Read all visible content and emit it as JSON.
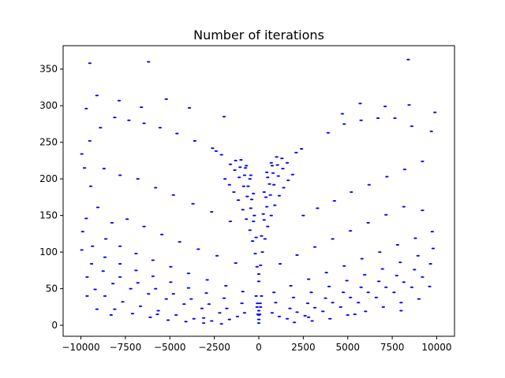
{
  "chart_data": {
    "type": "scatter",
    "title": "Number of iterations",
    "xlabel": "",
    "ylabel": "",
    "xlim": [
      -11000,
      11000
    ],
    "ylim": [
      -15,
      382
    ],
    "grid": false,
    "legend": "none",
    "marker_color": "#0000ff",
    "xticks": [
      -10000,
      -7500,
      -5000,
      -2500,
      0,
      2500,
      5000,
      7500,
      10000
    ],
    "xtick_labels": [
      "−10000",
      "−7500",
      "−5000",
      "−2500",
      "0",
      "2500",
      "5000",
      "7500",
      "10000"
    ],
    "yticks": [
      0,
      50,
      100,
      150,
      200,
      250,
      300,
      350
    ],
    "ytick_labels": [
      "0",
      "50",
      "100",
      "150",
      "200",
      "250",
      "300",
      "350"
    ],
    "x": [
      -9500,
      -6200,
      8400,
      -9100,
      -9700,
      -7850,
      -6600,
      -5200,
      -3900,
      -1950,
      4700,
      5700,
      7100,
      8450,
      9900,
      -9950,
      -9500,
      -8900,
      -8100,
      -7300,
      -6450,
      -5550,
      -4600,
      -3600,
      -2600,
      3900,
      4800,
      5750,
      6700,
      7650,
      8600,
      9700,
      -9800,
      -9450,
      -8700,
      -7800,
      -6800,
      -5800,
      -4800,
      -3700,
      -2650,
      -1600,
      2500,
      3300,
      4250,
      5200,
      6200,
      7200,
      8200,
      9200,
      -9700,
      -9050,
      -8250,
      -7400,
      -6450,
      -5450,
      -4450,
      -3400,
      -2350,
      -1300,
      1200,
      2150,
      3150,
      4150,
      5150,
      6150,
      7150,
      8150,
      9200,
      -9900,
      -9350,
      -8600,
      -7800,
      -6900,
      -5950,
      -4950,
      -3950,
      -2900,
      -1850,
      -900,
      850,
      1800,
      2800,
      3800,
      4800,
      5800,
      6800,
      7800,
      8800,
      9750,
      -9950,
      -9400,
      -8650,
      -7800,
      -6900,
      -5950,
      -4950,
      -3950,
      -2950,
      -1950,
      -950,
      950,
      1950,
      2950,
      3950,
      4950,
      5950,
      6950,
      7950,
      8950,
      9800,
      -9650,
      -8750,
      -7800,
      -6800,
      -5800,
      -4800,
      -3800,
      -2800,
      -1800,
      -800,
      750,
      1750,
      2750,
      3750,
      4750,
      5750,
      6750,
      7750,
      8750,
      9650,
      -9200,
      -8200,
      -7200,
      -6200,
      -5200,
      -4200,
      -3200,
      -2200,
      -1200,
      1150,
      2150,
      3150,
      4150,
      5150,
      6150,
      7150,
      8150,
      9200,
      -9650,
      -8650,
      -7650,
      -6650,
      -5650,
      -4650,
      -3650,
      -2650,
      -1650,
      1600,
      2600,
      3600,
      4600,
      5600,
      6600,
      7600,
      8600,
      9600,
      -9100,
      -8100,
      -7100,
      -6100,
      -5100,
      -4100,
      -3100,
      -2100,
      2000,
      3000,
      4000,
      5000,
      6000,
      7000,
      8000,
      9000,
      -8300,
      -5700,
      -3100,
      2800,
      5400,
      8000,
      -1900,
      -1650,
      -1400,
      -1150,
      -900,
      -700,
      -500,
      -350,
      -200,
      -100,
      1900,
      1650,
      1400,
      1150,
      900,
      700,
      500,
      350,
      200,
      100,
      -1600,
      -1350,
      -1100,
      -850,
      -650,
      -450,
      -300,
      -150,
      1600,
      1350,
      1100,
      850,
      650,
      450,
      300,
      150,
      -1300,
      -1050,
      -800,
      -600,
      -400,
      -250,
      1300,
      1050,
      800,
      600,
      400,
      250,
      -1000,
      -750,
      -500,
      -300,
      1000,
      750,
      500,
      300,
      -700,
      -450,
      700,
      450,
      -2400,
      -2100,
      2400,
      2100,
      -150,
      -75,
      0,
      75,
      150,
      -100,
      0,
      100,
      -50,
      0,
      50,
      0,
      0,
      0
    ],
    "y": [
      358,
      360,
      363,
      314,
      296,
      307,
      298,
      309,
      297,
      285,
      289,
      303,
      299,
      301,
      291,
      234,
      252,
      270,
      284,
      280,
      276,
      270,
      262,
      252,
      242,
      263,
      275,
      280,
      283,
      283,
      272,
      265,
      215,
      190,
      214,
      205,
      200,
      188,
      178,
      166,
      155,
      142,
      150,
      160,
      170,
      182,
      192,
      203,
      213,
      224,
      146,
      161,
      140,
      145,
      135,
      124,
      114,
      104,
      95,
      85,
      84,
      96,
      107,
      118,
      129,
      140,
      151,
      162,
      157,
      128,
      108,
      118,
      108,
      98,
      89,
      80,
      71,
      62,
      54,
      46,
      45,
      54,
      63,
      72,
      81,
      91,
      100,
      110,
      119,
      128,
      103,
      84,
      93,
      84,
      75,
      67,
      59,
      51,
      44,
      37,
      30,
      31,
      38,
      45,
      53,
      61,
      69,
      77,
      86,
      95,
      105,
      66,
      74,
      66,
      58,
      50,
      43,
      36,
      29,
      23,
      17,
      17,
      23,
      30,
      37,
      45,
      52,
      60,
      68,
      76,
      84,
      49,
      57,
      50,
      43,
      36,
      29,
      23,
      17,
      12,
      12,
      18,
      24,
      31,
      38,
      45,
      52,
      59,
      66,
      40,
      40,
      32,
      26,
      20,
      14,
      9,
      6,
      8,
      9,
      13,
      19,
      25,
      31,
      38,
      45,
      52,
      53,
      22,
      22,
      16,
      11,
      7,
      5,
      3,
      2,
      4,
      6,
      9,
      14,
      19,
      25,
      31,
      36,
      14,
      15,
      10,
      11,
      15,
      20,
      200,
      192,
      182,
      171,
      158,
      145,
      130,
      115,
      98,
      80,
      206,
      198,
      188,
      177,
      164,
      150,
      135,
      118,
      100,
      82,
      220,
      212,
      202,
      190,
      176,
      160,
      142,
      120,
      222,
      214,
      204,
      192,
      178,
      162,
      144,
      122,
      225,
      216,
      205,
      190,
      172,
      150,
      228,
      219,
      208,
      193,
      175,
      152,
      226,
      215,
      200,
      180,
      230,
      218,
      202,
      182,
      218,
      205,
      222,
      209,
      238,
      233,
      241,
      236,
      40,
      30,
      20,
      30,
      40,
      25,
      14,
      25,
      15,
      8,
      15,
      60,
      70,
      3
    ]
  }
}
